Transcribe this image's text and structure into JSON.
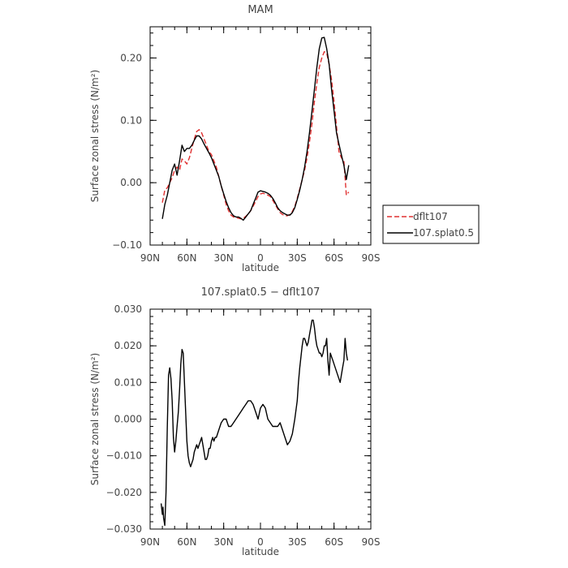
{
  "chart_data": [
    {
      "type": "line",
      "title": "MAM",
      "xlabel": "latitude",
      "ylabel": "Surface zonal stress (N/m²)",
      "xlim": [
        90,
        -90
      ],
      "ylim": [
        -0.1,
        0.25
      ],
      "x_ticks": [
        {
          "value": 90,
          "label": "90N"
        },
        {
          "value": 60,
          "label": "60N"
        },
        {
          "value": 30,
          "label": "30N"
        },
        {
          "value": 0,
          "label": "0"
        },
        {
          "value": -30,
          "label": "30S"
        },
        {
          "value": -60,
          "label": "60S"
        },
        {
          "value": -90,
          "label": "90S"
        }
      ],
      "y_ticks": [
        {
          "value": -0.1,
          "label": "−0.10"
        },
        {
          "value": 0.0,
          "label": "0.00"
        },
        {
          "value": 0.1,
          "label": "0.10"
        },
        {
          "value": 0.2,
          "label": "0.20"
        }
      ],
      "legend": {
        "placement": "right"
      },
      "series": [
        {
          "name": "dflt107",
          "color": "#e03030",
          "dash": "dashed",
          "x": [
            80,
            78,
            76,
            74,
            72,
            70,
            68,
            66,
            64,
            62,
            60,
            58,
            56,
            54,
            52,
            50,
            48,
            46,
            44,
            42,
            40,
            38,
            36,
            34,
            32,
            30,
            28,
            26,
            24,
            22,
            20,
            18,
            16,
            14,
            12,
            10,
            8,
            6,
            4,
            2,
            0,
            -2,
            -4,
            -6,
            -8,
            -10,
            -12,
            -14,
            -16,
            -18,
            -20,
            -22,
            -24,
            -26,
            -28,
            -30,
            -32,
            -34,
            -36,
            -38,
            -40,
            -42,
            -44,
            -46,
            -48,
            -50,
            -52,
            -54,
            -56,
            -58,
            -60,
            -62,
            -64,
            -66,
            -68,
            -70,
            -72
          ],
          "values": [
            -0.032,
            -0.012,
            -0.008,
            0.0,
            0.008,
            0.02,
            0.025,
            0.02,
            0.038,
            0.035,
            0.03,
            0.04,
            0.055,
            0.07,
            0.082,
            0.085,
            0.08,
            0.07,
            0.06,
            0.05,
            0.045,
            0.035,
            0.025,
            0.01,
            -0.005,
            -0.02,
            -0.035,
            -0.045,
            -0.052,
            -0.055,
            -0.056,
            -0.057,
            -0.058,
            -0.057,
            -0.054,
            -0.05,
            -0.045,
            -0.038,
            -0.03,
            -0.022,
            -0.018,
            -0.017,
            -0.018,
            -0.02,
            -0.022,
            -0.028,
            -0.035,
            -0.042,
            -0.048,
            -0.051,
            -0.053,
            -0.053,
            -0.051,
            -0.046,
            -0.038,
            -0.025,
            -0.01,
            0.005,
            0.02,
            0.04,
            0.065,
            0.095,
            0.13,
            0.16,
            0.185,
            0.2,
            0.21,
            0.208,
            0.19,
            0.165,
            0.13,
            0.09,
            0.05,
            0.04,
            0.035,
            -0.02,
            -0.015
          ]
        },
        {
          "name": "107.splat0.5",
          "color": "#000000",
          "dash": "solid",
          "x": [
            80,
            78,
            76,
            74,
            72,
            70,
            68,
            66,
            64,
            62,
            60,
            58,
            56,
            54,
            52,
            50,
            48,
            46,
            44,
            42,
            40,
            38,
            36,
            34,
            32,
            30,
            28,
            26,
            24,
            22,
            20,
            18,
            16,
            14,
            12,
            10,
            8,
            6,
            4,
            2,
            0,
            -2,
            -4,
            -6,
            -8,
            -10,
            -12,
            -14,
            -16,
            -18,
            -20,
            -22,
            -24,
            -26,
            -28,
            -30,
            -32,
            -34,
            -36,
            -38,
            -40,
            -42,
            -44,
            -46,
            -48,
            -50,
            -52,
            -54,
            -56,
            -58,
            -60,
            -62,
            -64,
            -66,
            -68,
            -70,
            -72
          ],
          "values": [
            -0.058,
            -0.035,
            -0.02,
            0.0,
            0.02,
            0.03,
            0.012,
            0.035,
            0.06,
            0.05,
            0.055,
            0.055,
            0.06,
            0.068,
            0.075,
            0.075,
            0.07,
            0.062,
            0.055,
            0.048,
            0.04,
            0.03,
            0.02,
            0.01,
            -0.005,
            -0.018,
            -0.03,
            -0.04,
            -0.048,
            -0.053,
            -0.055,
            -0.055,
            -0.057,
            -0.06,
            -0.055,
            -0.05,
            -0.045,
            -0.035,
            -0.025,
            -0.015,
            -0.013,
            -0.014,
            -0.015,
            -0.017,
            -0.02,
            -0.025,
            -0.032,
            -0.04,
            -0.045,
            -0.048,
            -0.05,
            -0.052,
            -0.052,
            -0.048,
            -0.04,
            -0.027,
            -0.012,
            0.005,
            0.025,
            0.05,
            0.08,
            0.115,
            0.15,
            0.185,
            0.215,
            0.232,
            0.233,
            0.215,
            0.19,
            0.15,
            0.115,
            0.08,
            0.062,
            0.045,
            0.028,
            0.005,
            0.028
          ]
        }
      ]
    },
    {
      "type": "line",
      "title": "107.splat0.5 − dflt107",
      "xlabel": "latitude",
      "ylabel": "Surface zonal stress (N/m²)",
      "xlim": [
        90,
        -90
      ],
      "ylim": [
        -0.03,
        0.03
      ],
      "x_ticks": [
        {
          "value": 90,
          "label": "90N"
        },
        {
          "value": 60,
          "label": "60N"
        },
        {
          "value": 30,
          "label": "30N"
        },
        {
          "value": 0,
          "label": "0"
        },
        {
          "value": -30,
          "label": "30S"
        },
        {
          "value": -60,
          "label": "60S"
        },
        {
          "value": -90,
          "label": "90S"
        }
      ],
      "y_ticks": [
        {
          "value": -0.03,
          "label": "−0.030"
        },
        {
          "value": -0.02,
          "label": "−0.020"
        },
        {
          "value": -0.01,
          "label": "−0.010"
        },
        {
          "value": 0.0,
          "label": "0.000"
        },
        {
          "value": 0.01,
          "label": "0.010"
        },
        {
          "value": 0.02,
          "label": "0.020"
        },
        {
          "value": 0.03,
          "label": "0.030"
        }
      ],
      "series": [
        {
          "color": "#000000",
          "dash": "solid",
          "x": [
            81,
            80,
            79.5,
            79,
            78,
            77,
            76,
            75,
            74,
            73,
            72,
            71,
            70,
            69,
            68,
            67,
            66,
            65,
            64,
            63,
            62,
            61,
            60,
            59,
            58,
            57,
            56,
            55,
            54,
            53,
            52,
            51,
            50,
            49,
            48,
            47,
            46,
            45,
            44,
            43,
            42,
            41,
            40,
            39,
            38,
            37,
            36,
            35,
            34,
            33,
            32,
            30,
            28,
            26,
            24,
            22,
            20,
            18,
            16,
            14,
            12,
            10,
            8,
            6,
            4,
            2,
            0,
            -2,
            -4,
            -6,
            -8,
            -10,
            -12,
            -14,
            -16,
            -18,
            -20,
            -22,
            -24,
            -26,
            -28,
            -30,
            -31,
            -32,
            -33,
            -34,
            -35,
            -36,
            -37,
            -38,
            -39,
            -40,
            -41,
            -42,
            -43,
            -44,
            -45,
            -46,
            -47,
            -48,
            -49,
            -50,
            -51,
            -52,
            -53,
            -54,
            -55,
            -56,
            -57,
            -58,
            -59,
            -60,
            -61,
            -62,
            -63,
            -64,
            -65,
            -66,
            -67,
            -68,
            -69,
            -70,
            -71
          ],
          "values": [
            -0.023,
            -0.026,
            -0.024,
            -0.027,
            -0.029,
            -0.02,
            -0.002,
            0.012,
            0.014,
            0.011,
            0.005,
            -0.005,
            -0.009,
            -0.006,
            -0.002,
            0.002,
            0.008,
            0.015,
            0.019,
            0.018,
            0.01,
            0.002,
            -0.006,
            -0.01,
            -0.012,
            -0.013,
            -0.012,
            -0.011,
            -0.009,
            -0.008,
            -0.007,
            -0.008,
            -0.007,
            -0.006,
            -0.005,
            -0.007,
            -0.009,
            -0.011,
            -0.011,
            -0.01,
            -0.008,
            -0.008,
            -0.006,
            -0.005,
            -0.006,
            -0.005,
            -0.005,
            -0.004,
            -0.003,
            -0.002,
            -0.001,
            0.0,
            0.0,
            -0.002,
            -0.002,
            -0.001,
            0.0,
            0.001,
            0.002,
            0.003,
            0.004,
            0.005,
            0.005,
            0.004,
            0.002,
            0.0,
            0.003,
            0.004,
            0.003,
            0.0,
            -0.001,
            -0.002,
            -0.002,
            -0.002,
            -0.001,
            -0.003,
            -0.005,
            -0.007,
            -0.006,
            -0.004,
            0.0,
            0.005,
            0.01,
            0.014,
            0.017,
            0.02,
            0.022,
            0.022,
            0.021,
            0.02,
            0.021,
            0.023,
            0.025,
            0.027,
            0.027,
            0.025,
            0.022,
            0.02,
            0.019,
            0.018,
            0.018,
            0.017,
            0.018,
            0.02,
            0.02,
            0.022,
            0.016,
            0.012,
            0.018,
            0.017,
            0.016,
            0.015,
            0.014,
            0.013,
            0.012,
            0.011,
            0.01,
            0.012,
            0.014,
            0.016,
            0.022,
            0.018,
            0.016
          ]
        }
      ]
    }
  ]
}
